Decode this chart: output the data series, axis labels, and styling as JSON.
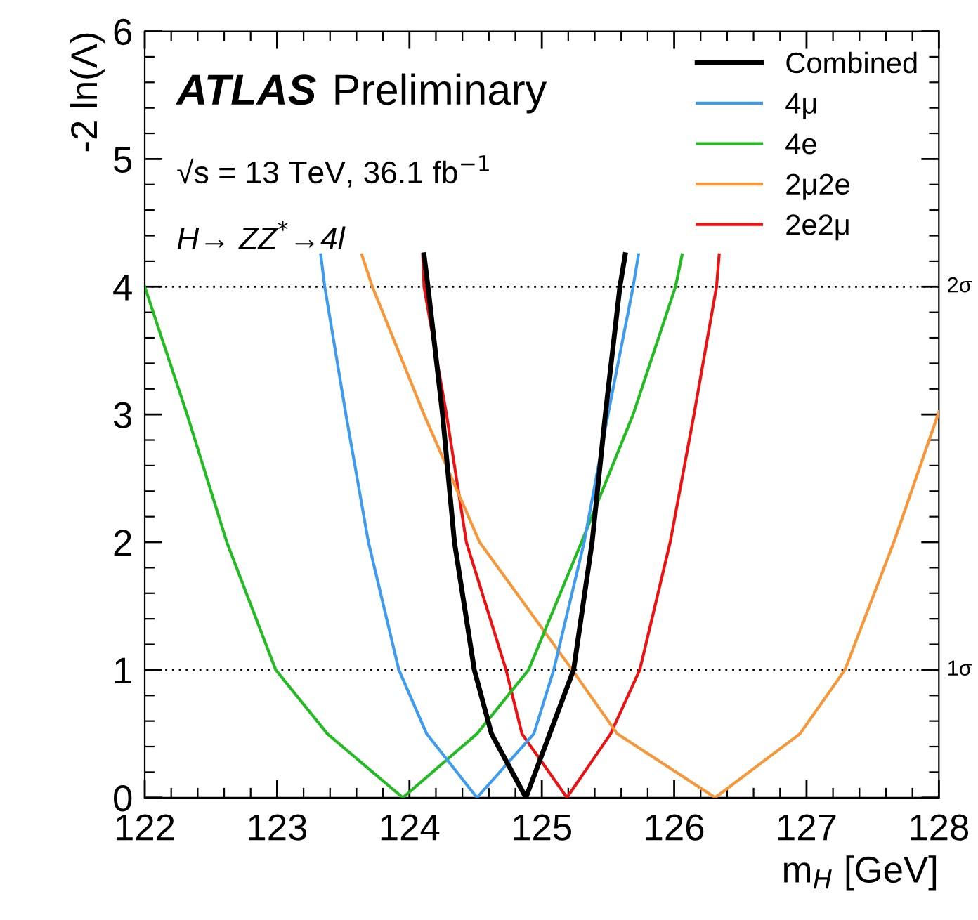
{
  "chart_data": {
    "type": "line",
    "xlabel": "m$_{H}$ [GeV]",
    "ylabel": "-2 ln(Λ)",
    "xlim": [
      122,
      128
    ],
    "ylim": [
      0,
      6
    ],
    "xticks": [
      122,
      123,
      124,
      125,
      126,
      127,
      128
    ],
    "yticks": [
      0,
      1,
      2,
      3,
      4,
      5,
      6
    ],
    "legend": "top right",
    "grid": false,
    "marker": "none",
    "line_style": "solid",
    "annotations": [
      "ATLAS Preliminary",
      "√s = 13 TeV, 36.1 fb$^{−1}$",
      "H→ ZZ$^{*}$→4l"
    ],
    "ref_lines": [
      {
        "axis": "y",
        "value": 1,
        "label": "1σ",
        "color": "#000000",
        "line_style": "dotted"
      },
      {
        "axis": "y",
        "value": 4,
        "label": "2σ",
        "color": "#000000",
        "line_style": "dotted"
      }
    ],
    "series": [
      {
        "name": "Combined",
        "color": "#000000",
        "x": [
          124.11,
          124.14,
          124.25,
          124.34,
          124.49,
          124.62,
          124.88,
          125.06,
          125.24,
          125.38,
          125.48,
          125.59,
          125.63
        ],
        "values": [
          4.25,
          4,
          3,
          2,
          1,
          0.5,
          0,
          0.5,
          1,
          2,
          3,
          4,
          4.25
        ]
      },
      {
        "name": "4μ",
        "color": "#3d9bf0",
        "x": [
          123.33,
          123.36,
          123.52,
          123.69,
          123.92,
          124.13,
          124.51,
          124.94,
          125.09,
          125.32,
          125.5,
          125.69,
          125.73
        ],
        "values": [
          4.25,
          4,
          3,
          2,
          1,
          0.5,
          0,
          0.5,
          1,
          2,
          3,
          4,
          4.25
        ]
      },
      {
        "name": "4e",
        "color": "#22bb22",
        "x": [
          122.0,
          122.32,
          122.62,
          122.99,
          123.38,
          123.95,
          124.51,
          124.9,
          125.3,
          125.69,
          126.01,
          126.06
        ],
        "values": [
          4,
          3,
          2,
          1,
          0.5,
          0,
          0.5,
          1,
          2,
          3,
          4,
          4.25
        ]
      },
      {
        "name": "2μ2e",
        "color": "#f7973a",
        "x": [
          123.64,
          123.72,
          124.11,
          124.53,
          125.23,
          125.57,
          126.31,
          126.95,
          127.29,
          127.66,
          128.0
        ],
        "values": [
          4.25,
          4,
          3,
          2,
          1,
          0.5,
          0,
          0.5,
          1,
          2,
          3.02
        ]
      },
      {
        "name": "2e2μ",
        "color": "#ee1111",
        "x": [
          124.1,
          124.11,
          124.28,
          124.43,
          124.73,
          124.85,
          125.19,
          125.52,
          125.74,
          125.97,
          126.15,
          126.32,
          126.34
        ],
        "values": [
          4.25,
          4,
          3,
          2,
          1,
          0.5,
          0,
          0.5,
          1,
          2,
          3,
          4,
          4.25
        ]
      }
    ]
  }
}
